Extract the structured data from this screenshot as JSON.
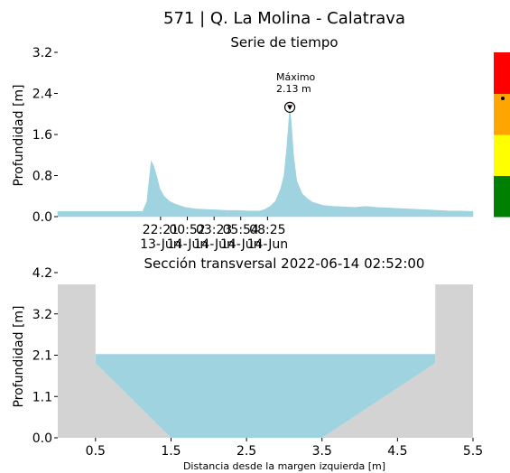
{
  "title": "571 | Q. La Molina - Calatrava",
  "chart_data": [
    {
      "type": "area",
      "title": "Serie de tiempo",
      "ylabel": "Profundidad [m]",
      "xlabel": "",
      "ylim": [
        0,
        3.2
      ],
      "y_ticks": [
        "0.0",
        "0.8",
        "1.6",
        "2.4",
        "3.2"
      ],
      "y_tick_values": [
        0,
        0.8,
        1.6,
        2.4,
        3.2
      ],
      "x_range_hours": [
        0,
        39.1
      ],
      "x_ticks": [
        {
          "time": "22:21",
          "date": "13-Jun",
          "hour": 9.68
        },
        {
          "time": "00:52",
          "date": "14-Jun",
          "hour": 12.2
        },
        {
          "time": "03:23",
          "date": "14-Jun",
          "hour": 14.72
        },
        {
          "time": "05:54",
          "date": "14-Jun",
          "hour": 17.23
        },
        {
          "time": "08:25",
          "date": "14-Jun",
          "hour": 19.75
        }
      ],
      "series": [
        {
          "color": "#9fd3e0",
          "x": [
            0,
            2,
            5,
            8,
            8.4,
            8.6,
            8.8,
            9.0,
            9.3,
            9.6,
            10.0,
            10.5,
            11.0,
            12.0,
            13.0,
            14.0,
            15.0,
            16.0,
            17.0,
            18.0,
            19.0,
            19.5,
            20.0,
            20.5,
            21.0,
            21.3,
            21.5,
            21.7,
            21.85,
            22.0,
            22.2,
            22.5,
            23.0,
            23.5,
            24.0,
            25.0,
            26.0,
            27.0,
            28.0,
            29.0,
            30.0,
            31.0,
            32.0,
            33.0,
            34.0,
            35.0,
            36.0,
            37.0,
            38.0,
            39.1
          ],
          "values": [
            0.1,
            0.1,
            0.1,
            0.1,
            0.3,
            0.7,
            1.08,
            1.0,
            0.8,
            0.55,
            0.4,
            0.3,
            0.25,
            0.18,
            0.15,
            0.14,
            0.13,
            0.12,
            0.12,
            0.11,
            0.11,
            0.14,
            0.2,
            0.3,
            0.55,
            0.8,
            1.2,
            1.7,
            2.13,
            1.8,
            1.2,
            0.7,
            0.45,
            0.35,
            0.28,
            0.22,
            0.2,
            0.19,
            0.18,
            0.2,
            0.18,
            0.17,
            0.16,
            0.15,
            0.14,
            0.13,
            0.12,
            0.11,
            0.11,
            0.1
          ]
        }
      ],
      "annotation": {
        "label": "Máximo",
        "value_text": "2.13 m",
        "x": 21.85,
        "y": 2.13
      },
      "risk_scale": {
        "colors": [
          "#008000",
          "#ffff00",
          "#ffa500",
          "#ff0000"
        ],
        "marker_level_fraction": 0.72
      }
    },
    {
      "type": "area",
      "title": "Sección transversal 2022-06-14 02:52:00",
      "ylabel": "Profundidad [m]",
      "xlabel": "Distancia desde la margen izquierda [m]",
      "xlim": [
        0,
        5.5
      ],
      "ylim": [
        0,
        4.2
      ],
      "x_ticks": [
        "0.5",
        "1.5",
        "2.5",
        "3.5",
        "4.5",
        "5.5"
      ],
      "x_tick_values": [
        0.5,
        1.5,
        2.5,
        3.5,
        4.5,
        5.5
      ],
      "y_ticks": [
        "0.0",
        "1.1",
        "2.1",
        "3.2",
        "4.2"
      ],
      "y_tick_values": [
        0,
        1.05,
        2.1,
        3.15,
        4.2
      ],
      "channel_profile": {
        "color": "#d3d3d3",
        "x": [
          0,
          0.5,
          0.5,
          1.5,
          3.5,
          5.0,
          5.0,
          5.5
        ],
        "y": [
          3.9,
          3.9,
          1.9,
          0.0,
          0.0,
          1.9,
          3.9,
          3.9
        ]
      },
      "water": {
        "color": "#9fd3e0",
        "level": 2.13
      }
    }
  ]
}
